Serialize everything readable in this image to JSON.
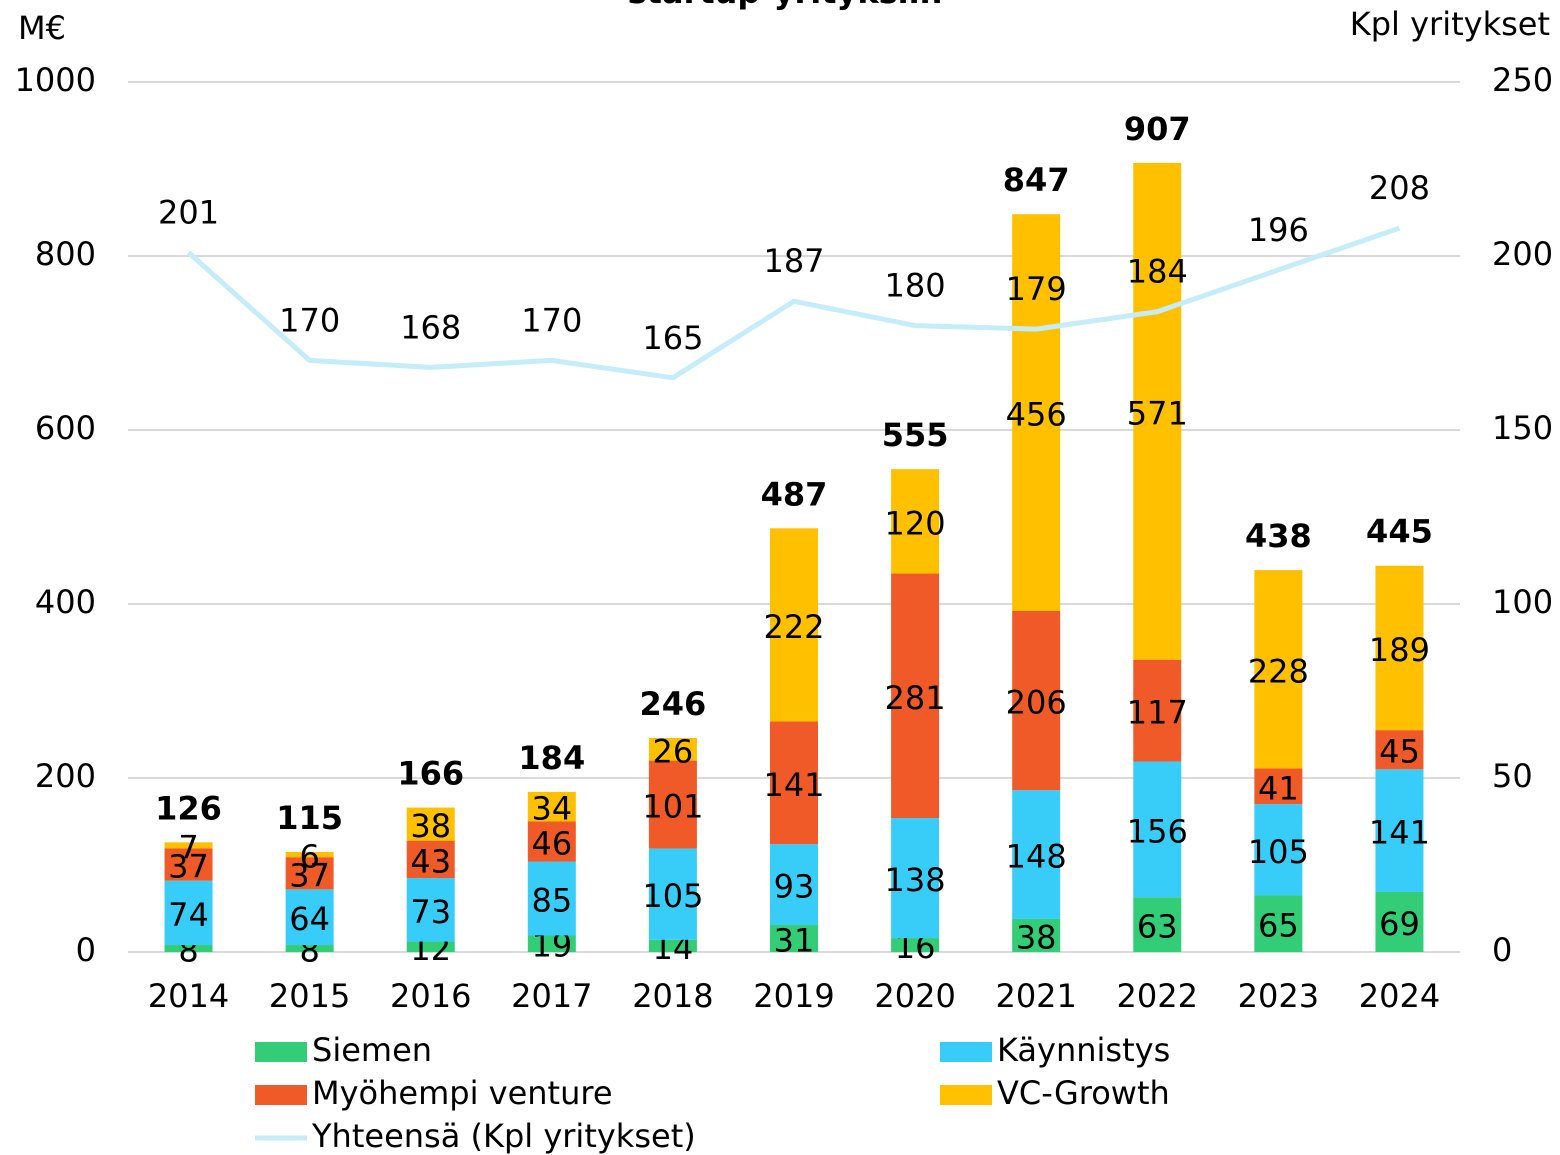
{
  "chart_data": {
    "type": "bar",
    "title": "startup-yrityksiin",
    "y_label": "M€",
    "y2_label": "Kpl yritykset",
    "categories": [
      "2014",
      "2015",
      "2016",
      "2017",
      "2018",
      "2019",
      "2020",
      "2021",
      "2022",
      "2023",
      "2024"
    ],
    "series": [
      {
        "name": "Siemen",
        "color": "#33cc77",
        "values": [
          8,
          8,
          12,
          19,
          14,
          31,
          16,
          38,
          63,
          65,
          69
        ]
      },
      {
        "name": "Käynnistys",
        "color": "#38cdf8",
        "values": [
          74,
          64,
          73,
          85,
          105,
          93,
          138,
          148,
          156,
          105,
          141
        ]
      },
      {
        "name": "Myöhempi venture",
        "color": "#f05a28",
        "values": [
          37,
          37,
          43,
          46,
          101,
          141,
          281,
          206,
          117,
          41,
          45
        ]
      },
      {
        "name": "VC-Growth",
        "color": "#ffc000",
        "values": [
          7,
          6,
          38,
          34,
          26,
          222,
          120,
          456,
          571,
          228,
          189
        ]
      },
      {
        "name": "Yhteensä (Kpl yritykset)",
        "color": "#c4ecf9",
        "type": "line",
        "axis": "y2",
        "values": [
          201,
          170,
          168,
          170,
          165,
          187,
          180,
          179,
          184,
          196,
          208
        ]
      }
    ],
    "totals": [
      126,
      115,
      166,
      184,
      246,
      487,
      555,
      847,
      907,
      438,
      445
    ],
    "ylim": [
      0,
      1000
    ],
    "yticks": [
      0,
      200,
      400,
      600,
      800,
      1000
    ],
    "y2lim": [
      0,
      250
    ],
    "y2ticks": [
      0,
      50,
      100,
      150,
      200,
      250
    ],
    "grid": true
  }
}
